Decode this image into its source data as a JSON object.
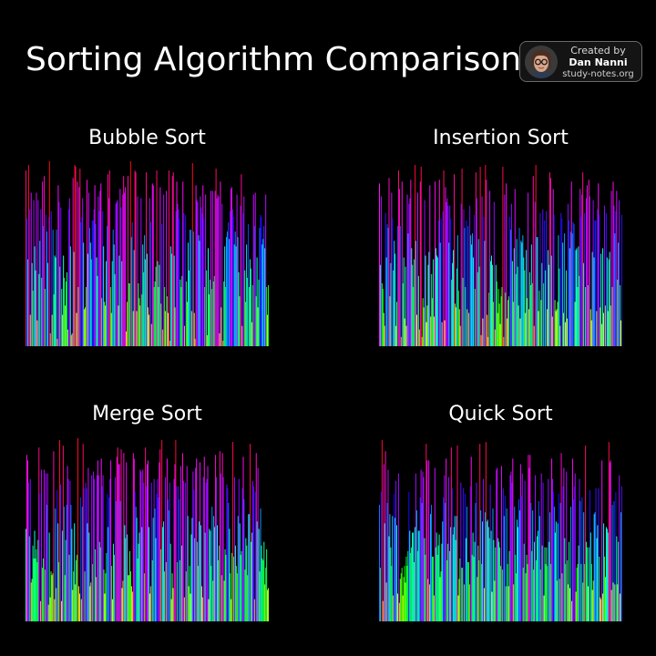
{
  "title": "Sorting Algorithm Comparison",
  "credit": {
    "line1": "Created by",
    "name": "Dan Nanni",
    "site": "study-notes.org",
    "avatar_icon": "person-with-glasses-icon"
  },
  "chart_data": [
    {
      "type": "bar",
      "title": "Bubble Sort",
      "xlabel": "",
      "ylabel": "",
      "axes_visible": false,
      "ylim": [
        0,
        100
      ],
      "color_scheme": "hue by value (low=green/yellow/orange, mid=cyan/blue/violet, high=magenta/red)",
      "values": [
        95,
        69,
        47,
        98,
        74,
        17,
        83,
        45,
        30,
        79,
        54,
        41,
        83,
        14,
        79,
        39,
        57,
        74,
        37,
        89,
        65,
        92,
        31,
        71,
        62,
        45,
        70,
        100,
        7,
        73,
        17,
        63,
        28,
        49,
        48,
        63,
        4,
        87,
        78,
        43,
        75,
        31,
        17,
        49,
        37,
        22,
        35,
        40,
        9,
        74,
        80,
        54,
        6,
        7,
        91,
        51,
        98,
        97,
        18,
        89,
        32,
        86,
        96,
        67,
        70,
        80,
        56,
        20,
        21,
        32,
        90,
        50,
        83,
        64,
        56,
        47,
        68,
        68,
        74,
        87,
        66,
        48,
        38,
        81,
        73,
        84,
        88,
        26,
        73,
        54,
        24,
        22,
        46,
        65,
        93,
        80,
        95,
        32,
        18,
        46,
        63,
        55,
        39,
        77,
        78,
        79,
        22,
        49,
        85,
        75,
        46,
        82,
        92,
        83,
        86,
        8,
        24,
        92,
        34,
        34,
        100,
        59,
        67,
        19,
        52,
        95,
        94,
        19,
        81,
        34,
        26,
        22,
        80,
        28,
        55,
        40,
        60,
        47,
        94,
        50,
        21,
        17,
        80,
        67,
        12,
        88,
        87,
        32,
        35,
        43,
        95,
        46,
        32,
        44,
        86,
        23,
        66,
        9,
        82,
        32,
        19,
        84,
        27,
        18,
        95,
        3,
        54,
        50,
        92,
        94,
        49,
        21,
        73,
        89,
        77,
        74,
        69,
        36,
        32,
        38,
        89,
        72,
        11,
        71,
        35,
        24,
        56,
        41,
        63,
        63,
        19,
        99,
        62,
        18,
        4,
        87,
        79,
        78,
        60,
        57,
        81,
        75,
        72,
        87,
        69,
        32,
        82,
        41,
        6,
        53,
        28,
        36,
        84,
        31,
        84,
        35,
        38,
        84,
        96,
        80,
        82,
        81,
        7,
        89,
        21,
        77,
        3,
        35,
        54,
        32,
        59,
        62,
        67,
        58,
        73,
        85,
        86,
        74,
        70,
        55,
        62,
        54,
        82,
        59,
        40,
        27,
        76,
        93,
        11,
        72,
        81,
        41,
        24,
        55,
        37,
        66,
        32,
        47,
        42,
        13,
        33,
        82,
        65,
        83,
        27,
        48,
        21,
        36,
        64,
        71,
        70,
        55,
        58,
        65,
        53,
        82,
        32,
        17,
        33
      ]
    },
    {
      "type": "bar",
      "title": "Insertion Sort",
      "xlabel": "",
      "ylabel": "",
      "axes_visible": false,
      "ylim": [
        0,
        100
      ],
      "color_scheme": "hue by value (low=green/yellow/orange, mid=cyan/blue/violet, high=magenta/red)",
      "values": [
        88,
        44,
        81,
        34,
        31,
        18,
        11,
        72,
        48,
        66,
        64,
        91,
        27,
        45,
        83,
        69,
        41,
        57,
        50,
        11,
        24,
        65,
        95,
        85,
        65,
        5,
        89,
        34,
        48,
        15,
        43,
        11,
        82,
        61,
        77,
        80,
        90,
        53,
        44,
        32,
        47,
        98,
        57,
        17,
        83,
        38,
        9,
        89,
        97,
        5,
        26,
        21,
        79,
        49,
        13,
        22,
        44,
        51,
        87,
        16,
        39,
        26,
        47,
        16,
        89,
        53,
        49,
        48,
        68,
        90,
        56,
        69,
        13,
        73,
        95,
        14,
        86,
        78,
        80,
        76,
        56,
        76,
        69,
        36,
        45,
        52,
        93,
        23,
        21,
        42,
        60,
        30,
        20,
        11,
        77,
        96,
        37,
        74,
        64,
        32,
        68,
        20,
        65,
        18,
        76,
        60,
        55,
        61,
        48,
        71,
        31,
        94,
        80,
        40,
        58,
        43,
        97,
        6,
        81,
        15,
        70,
        57,
        98,
        90,
        17,
        5,
        29,
        84,
        46,
        49,
        44,
        24,
        78,
        9,
        44,
        35,
        18,
        31,
        23,
        12,
        27,
        32,
        97,
        5,
        82,
        29,
        88,
        15,
        25,
        27,
        70,
        63,
        77,
        46,
        24,
        53,
        85,
        39,
        58,
        43,
        22,
        64,
        15,
        57,
        56,
        60,
        48,
        41,
        18,
        52,
        26,
        83,
        20,
        40,
        33,
        55,
        34,
        92,
        11,
        78,
        98,
        59,
        59,
        19,
        30,
        72,
        25,
        45,
        74,
        34,
        68,
        41,
        73,
        20,
        52,
        44,
        94,
        91,
        49,
        16,
        85,
        71,
        25,
        19,
        20,
        24,
        60,
        42,
        11,
        72,
        69,
        56,
        18,
        61,
        13,
        41,
        15,
        77,
        68,
        53,
        62,
        89,
        61,
        67,
        66,
        24,
        52,
        53,
        32,
        54,
        38,
        85,
        70,
        82,
        94,
        45,
        72,
        32,
        80,
        87,
        33,
        90,
        81,
        20,
        14,
        51,
        79,
        48,
        68,
        68,
        19,
        74,
        88,
        71,
        21,
        50,
        12,
        53,
        18,
        76,
        22,
        72,
        48,
        19,
        47,
        51,
        22,
        84,
        32,
        89,
        76,
        61,
        73,
        84,
        36,
        56,
        79,
        33,
        14,
        71
      ]
    },
    {
      "type": "bar",
      "title": "Merge Sort",
      "xlabel": "",
      "ylabel": "",
      "axes_visible": false,
      "ylim": [
        0,
        100
      ],
      "color_scheme": "hue by value (low=green/yellow/orange, mid=cyan/blue/violet, high=magenta/red)",
      "values": [
        50,
        90,
        87,
        75,
        46,
        77,
        21,
        23,
        41,
        34,
        49,
        34,
        39,
        32,
        44,
        94,
        69,
        11,
        82,
        29,
        34,
        82,
        28,
        80,
        63,
        80,
        9,
        48,
        13,
        27,
        25,
        26,
        92,
        12,
        61,
        18,
        71,
        53,
        32,
        98,
        74,
        11,
        49,
        95,
        62,
        25,
        44,
        63,
        84,
        77,
        36,
        76,
        63,
        50,
        17,
        27,
        53,
        20,
        33,
        36,
        99,
        19,
        15,
        67,
        12,
        62,
        96,
        72,
        27,
        75,
        72,
        53,
        83,
        48,
        19,
        21,
        79,
        31,
        81,
        77,
        39,
        24,
        79,
        87,
        79,
        43,
        40,
        88,
        73,
        79,
        28,
        15,
        26,
        37,
        69,
        51,
        67,
        77,
        87,
        30,
        12,
        42,
        36,
        78,
        65,
        89,
        94,
        85,
        85,
        65,
        93,
        18,
        22,
        91,
        52,
        45,
        86,
        47,
        25,
        25,
        38,
        27,
        19,
        16,
        91,
        88,
        70,
        62,
        56,
        34,
        42,
        48,
        82,
        81,
        51,
        82,
        75,
        26,
        94,
        73,
        85,
        87,
        51,
        15,
        19,
        75,
        33,
        56,
        77,
        61,
        45,
        69,
        77,
        67,
        86,
        93,
        39,
        98,
        51,
        54,
        27,
        78,
        32,
        88,
        66,
        60,
        75,
        42,
        12,
        26,
        18,
        77,
        85,
        98,
        73,
        32,
        73,
        66,
        33,
        84,
        41,
        91,
        76,
        13,
        75,
        27,
        84,
        57,
        19,
        30,
        15,
        47,
        56,
        81,
        71,
        45,
        83,
        88,
        43,
        30,
        54,
        86,
        52,
        19,
        13,
        78,
        89,
        48,
        75,
        77,
        84,
        12,
        50,
        49,
        30,
        62,
        22,
        57,
        51,
        90,
        78,
        52,
        33,
        41,
        92,
        80,
        25,
        91,
        78,
        22,
        39,
        36,
        74,
        72,
        64,
        50,
        26,
        12,
        37,
        97,
        35,
        78,
        41,
        30,
        26,
        57,
        77,
        53,
        36,
        38,
        72,
        89,
        66,
        28,
        45,
        41,
        25,
        58,
        58,
        96,
        43,
        48,
        76,
        73,
        12,
        70,
        91,
        54,
        83,
        50,
        27,
        61,
        41,
        34,
        33,
        43,
        20,
        29,
        39,
        17,
        18
      ]
    },
    {
      "type": "bar",
      "title": "Quick Sort",
      "xlabel": "",
      "ylabel": "",
      "axes_visible": false,
      "ylim": [
        0,
        100
      ],
      "color_scheme": "hue by value (low=green/yellow/orange, mid=cyan/blue/violet, high=magenta/red)",
      "values": [
        63,
        29,
        70,
        98,
        11,
        85,
        53,
        92,
        21,
        64,
        82,
        46,
        58,
        40,
        30,
        57,
        14,
        69,
        56,
        76,
        52,
        15,
        80,
        10,
        23,
        26,
        29,
        14,
        24,
        30,
        21,
        35,
        30,
        38,
        70,
        49,
        37,
        40,
        48,
        48,
        32,
        51,
        80,
        60,
        38,
        49,
        49,
        67,
        82,
        64,
        81,
        78,
        45,
        36,
        96,
        87,
        23,
        87,
        20,
        58,
        63,
        35,
        35,
        14,
        83,
        40,
        48,
        36,
        41,
        47,
        24,
        27,
        42,
        54,
        67,
        79,
        64,
        88,
        33,
        42,
        78,
        38,
        51,
        94,
        72,
        47,
        51,
        57,
        44,
        57,
        95,
        14,
        23,
        34,
        75,
        29,
        29,
        72,
        20,
        69,
        45,
        62,
        32,
        32,
        20,
        73,
        89,
        36,
        48,
        35,
        43,
        64,
        75,
        24,
        41,
        33,
        96,
        60,
        31,
        54,
        77,
        18,
        59,
        97,
        54,
        55,
        51,
        45,
        74,
        49,
        16,
        61,
        44,
        22,
        40,
        82,
        83,
        45,
        43,
        40,
        30,
        84,
        28,
        72,
        57,
        68,
        19,
        61,
        31,
        19,
        38,
        79,
        81,
        75,
        88,
        20,
        62,
        36,
        26,
        55,
        51,
        66,
        60,
        85,
        68,
        80,
        29,
        42,
        76,
        26,
        36,
        31,
        90,
        83,
        90,
        64,
        38,
        60,
        28,
        43,
        79,
        33,
        46,
        49,
        65,
        57,
        28,
        80,
        41,
        75,
        14,
        40,
        31,
        40,
        30,
        77,
        43,
        59,
        31,
        88,
        77,
        70,
        62,
        48,
        54,
        22,
        53,
        69,
        23,
        64,
        91,
        26,
        73,
        83,
        45,
        31,
        81,
        33,
        20,
        43,
        18,
        62,
        11,
        88,
        66,
        73,
        80,
        16,
        29,
        31,
        41,
        77,
        65,
        31,
        67,
        21,
        59,
        31,
        95,
        43,
        40,
        19,
        40,
        71,
        48,
        31,
        17,
        22,
        58,
        59,
        72,
        45,
        52,
        72,
        35,
        13,
        12,
        87,
        15,
        53,
        35,
        24,
        51,
        50,
        48,
        97,
        86,
        87,
        17,
        63,
        21,
        65,
        20,
        70,
        46,
        20,
        43,
        79,
        15,
        59,
        73
      ]
    }
  ]
}
